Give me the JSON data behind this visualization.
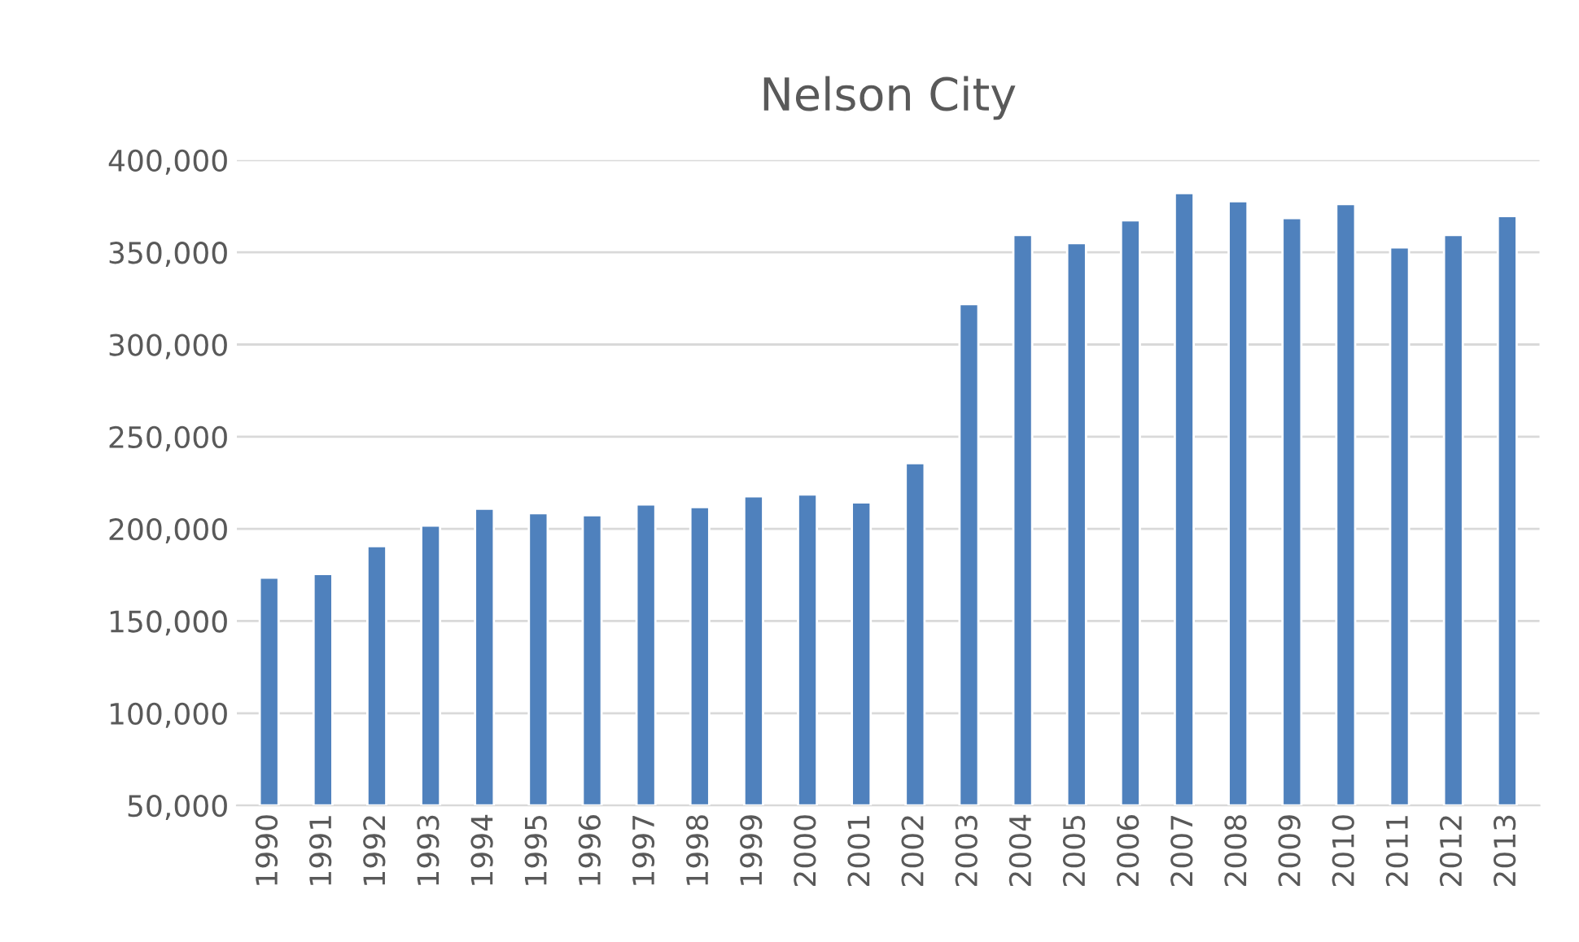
{
  "chart_data": {
    "type": "bar",
    "title": "Nelson City",
    "categories": [
      "1990",
      "1991",
      "1992",
      "1993",
      "1994",
      "1995",
      "1996",
      "1997",
      "1998",
      "1999",
      "2000",
      "2001",
      "2002",
      "2003",
      "2004",
      "2005",
      "2006",
      "2007",
      "2008",
      "2009",
      "2010",
      "2011",
      "2012",
      "2013"
    ],
    "values": [
      173500,
      175500,
      190600,
      201800,
      210900,
      208500,
      207400,
      213300,
      211800,
      217700,
      218600,
      214400,
      235600,
      321900,
      359400,
      355000,
      367400,
      382100,
      377700,
      368600,
      376200,
      352700,
      359400,
      369700
    ],
    "color": "#4f81bd",
    "ylim": [
      50000,
      400000
    ],
    "yticks": [
      {
        "value": 50000,
        "label": "50,000"
      },
      {
        "value": 100000,
        "label": "100,000"
      },
      {
        "value": 150000,
        "label": "150,000"
      },
      {
        "value": 200000,
        "label": "200,000"
      },
      {
        "value": 250000,
        "label": "250,000"
      },
      {
        "value": 300000,
        "label": "300,000"
      },
      {
        "value": 350000,
        "label": "350,000"
      },
      {
        "value": 400000,
        "label": "400,000"
      }
    ],
    "grid": "y"
  }
}
